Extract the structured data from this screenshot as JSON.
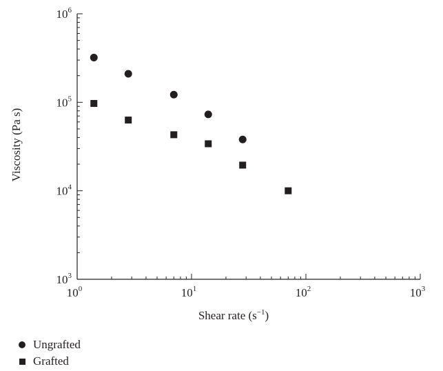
{
  "chart_data": {
    "type": "scatter",
    "title": "",
    "xlabel": "Shear rate (s",
    "xlabel_sup": "−1",
    "xlabel_tail": ")",
    "ylabel": "Viscosity (Pa s)",
    "x_scale": "log",
    "y_scale": "log",
    "xlim": [
      1,
      1000
    ],
    "ylim": [
      1000,
      1000000
    ],
    "x_ticks": [
      {
        "base": "10",
        "exp": "0",
        "value": 1
      },
      {
        "base": "10",
        "exp": "1",
        "value": 10
      },
      {
        "base": "10",
        "exp": "2",
        "value": 100
      },
      {
        "base": "10",
        "exp": "3",
        "value": 1000
      }
    ],
    "y_ticks": [
      {
        "base": "10",
        "exp": "3",
        "value": 1000
      },
      {
        "base": "10",
        "exp": "4",
        "value": 10000
      },
      {
        "base": "10",
        "exp": "5",
        "value": 100000
      },
      {
        "base": "10",
        "exp": "6",
        "value": 1000000
      }
    ],
    "grid": false,
    "legend_position": "bottom-left",
    "series": [
      {
        "name": "Ungrafted",
        "marker": "circle",
        "color": "#231f20",
        "points": [
          {
            "x": 1.4,
            "y": 320000
          },
          {
            "x": 2.8,
            "y": 210000
          },
          {
            "x": 7.0,
            "y": 122000
          },
          {
            "x": 14.0,
            "y": 73000
          },
          {
            "x": 28.0,
            "y": 38000
          }
        ]
      },
      {
        "name": "Grafted",
        "marker": "square",
        "color": "#231f20",
        "points": [
          {
            "x": 1.4,
            "y": 97000
          },
          {
            "x": 2.8,
            "y": 63000
          },
          {
            "x": 7.0,
            "y": 43000
          },
          {
            "x": 14.0,
            "y": 34000
          },
          {
            "x": 28.0,
            "y": 19500
          },
          {
            "x": 70.0,
            "y": 10000
          }
        ]
      }
    ]
  }
}
